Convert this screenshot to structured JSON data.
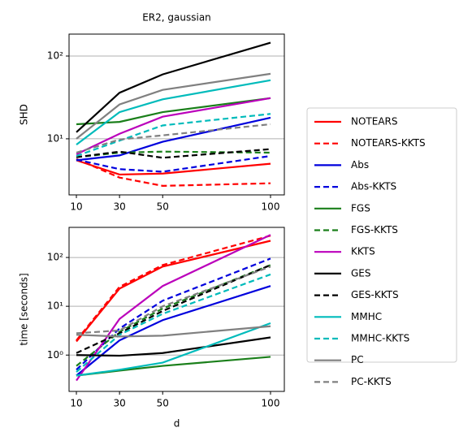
{
  "chart_data": [
    {
      "type": "line",
      "title": "ER2, gaussian",
      "ylabel": "SHD",
      "x": [
        10,
        30,
        50,
        100
      ],
      "xlim": [
        6.6,
        106.4
      ],
      "xticks": [
        10,
        30,
        50,
        100
      ],
      "ylim": [
        2.1,
        184
      ],
      "yticks": [
        {
          "value": 10,
          "label": "10¹"
        },
        {
          "value": 100,
          "label": "10²"
        }
      ],
      "log_y": true,
      "grid": true,
      "legend": "outside right",
      "series": [
        {
          "name": "NOTEARS",
          "color": "#ff0000",
          "style": "solid",
          "values": [
            5.5,
            3.7,
            3.8,
            5.0
          ]
        },
        {
          "name": "NOTEARS-KKTS",
          "color": "#ff0000",
          "style": "dashed",
          "values": [
            5.7,
            3.4,
            2.7,
            2.9
          ]
        },
        {
          "name": "Abs",
          "color": "#0000dd",
          "style": "solid",
          "values": [
            5.5,
            6.3,
            9.2,
            18
          ]
        },
        {
          "name": "Abs-KKTS",
          "color": "#0000dd",
          "style": "dashed",
          "values": [
            5.6,
            4.3,
            4.0,
            6.2
          ]
        },
        {
          "name": "FGS",
          "color": "#1a7f1a",
          "style": "solid",
          "values": [
            15,
            16,
            21,
            31
          ]
        },
        {
          "name": "FGS-KKTS",
          "color": "#1a7f1a",
          "style": "dashed",
          "values": [
            6.0,
            6.8,
            7.0,
            6.8
          ]
        },
        {
          "name": "KKTS",
          "color": "#bb00bb",
          "style": "solid",
          "values": [
            6.5,
            11.5,
            18.5,
            31
          ]
        },
        {
          "name": "GES",
          "color": "#000000",
          "style": "solid",
          "values": [
            12,
            36,
            60,
            145
          ]
        },
        {
          "name": "GES-KKTS",
          "color": "#000000",
          "style": "dashed",
          "values": [
            6.0,
            7.0,
            5.9,
            7.5
          ]
        },
        {
          "name": "MMHC",
          "color": "#00bbbb",
          "style": "solid",
          "values": [
            8.5,
            21,
            30,
            51
          ]
        },
        {
          "name": "MMHC-KKTS",
          "color": "#00bbbb",
          "style": "dashed",
          "values": [
            6.2,
            9.5,
            14.5,
            20
          ]
        },
        {
          "name": "PC",
          "color": "#808080",
          "style": "solid",
          "values": [
            10,
            26,
            39,
            61
          ]
        },
        {
          "name": "PC-KKTS",
          "color": "#808080",
          "style": "dashed",
          "values": [
            6.8,
            9.8,
            11,
            15
          ]
        }
      ]
    },
    {
      "type": "line",
      "ylabel": "time [seconds]",
      "xlabel": "d",
      "x": [
        10,
        30,
        50,
        100
      ],
      "xlim": [
        6.6,
        106.4
      ],
      "xticks": [
        10,
        30,
        50,
        100
      ],
      "ylim": [
        0.18,
        414
      ],
      "yticks": [
        {
          "value": 1,
          "label": "10⁰"
        },
        {
          "value": 10,
          "label": "10¹"
        },
        {
          "value": 100,
          "label": "10²"
        }
      ],
      "log_y": true,
      "grid": true,
      "series": [
        {
          "values": [
            1.9,
            23,
            65,
            220
          ]
        },
        {
          "values": [
            2.0,
            25,
            70,
            280
          ]
        },
        {
          "values": [
            0.38,
            2.0,
            5.2,
            26
          ]
        },
        {
          "values": [
            0.5,
            3.5,
            13,
            95
          ]
        },
        {
          "values": [
            0.38,
            0.48,
            0.6,
            0.92
          ]
        },
        {
          "values": [
            0.6,
            3.0,
            9,
            70
          ]
        },
        {
          "values": [
            0.3,
            5.5,
            26,
            290
          ]
        },
        {
          "values": [
            1.0,
            0.97,
            1.1,
            2.3
          ]
        },
        {
          "values": [
            1.1,
            2.8,
            8,
            70
          ]
        },
        {
          "values": [
            0.38,
            0.5,
            0.7,
            4.5
          ]
        },
        {
          "values": [
            0.45,
            2.6,
            7,
            45
          ]
        },
        {
          "values": [
            2.6,
            2.4,
            2.5,
            3.9
          ]
        },
        {
          "values": [
            2.8,
            3.2,
            10,
            65
          ]
        }
      ]
    }
  ]
}
